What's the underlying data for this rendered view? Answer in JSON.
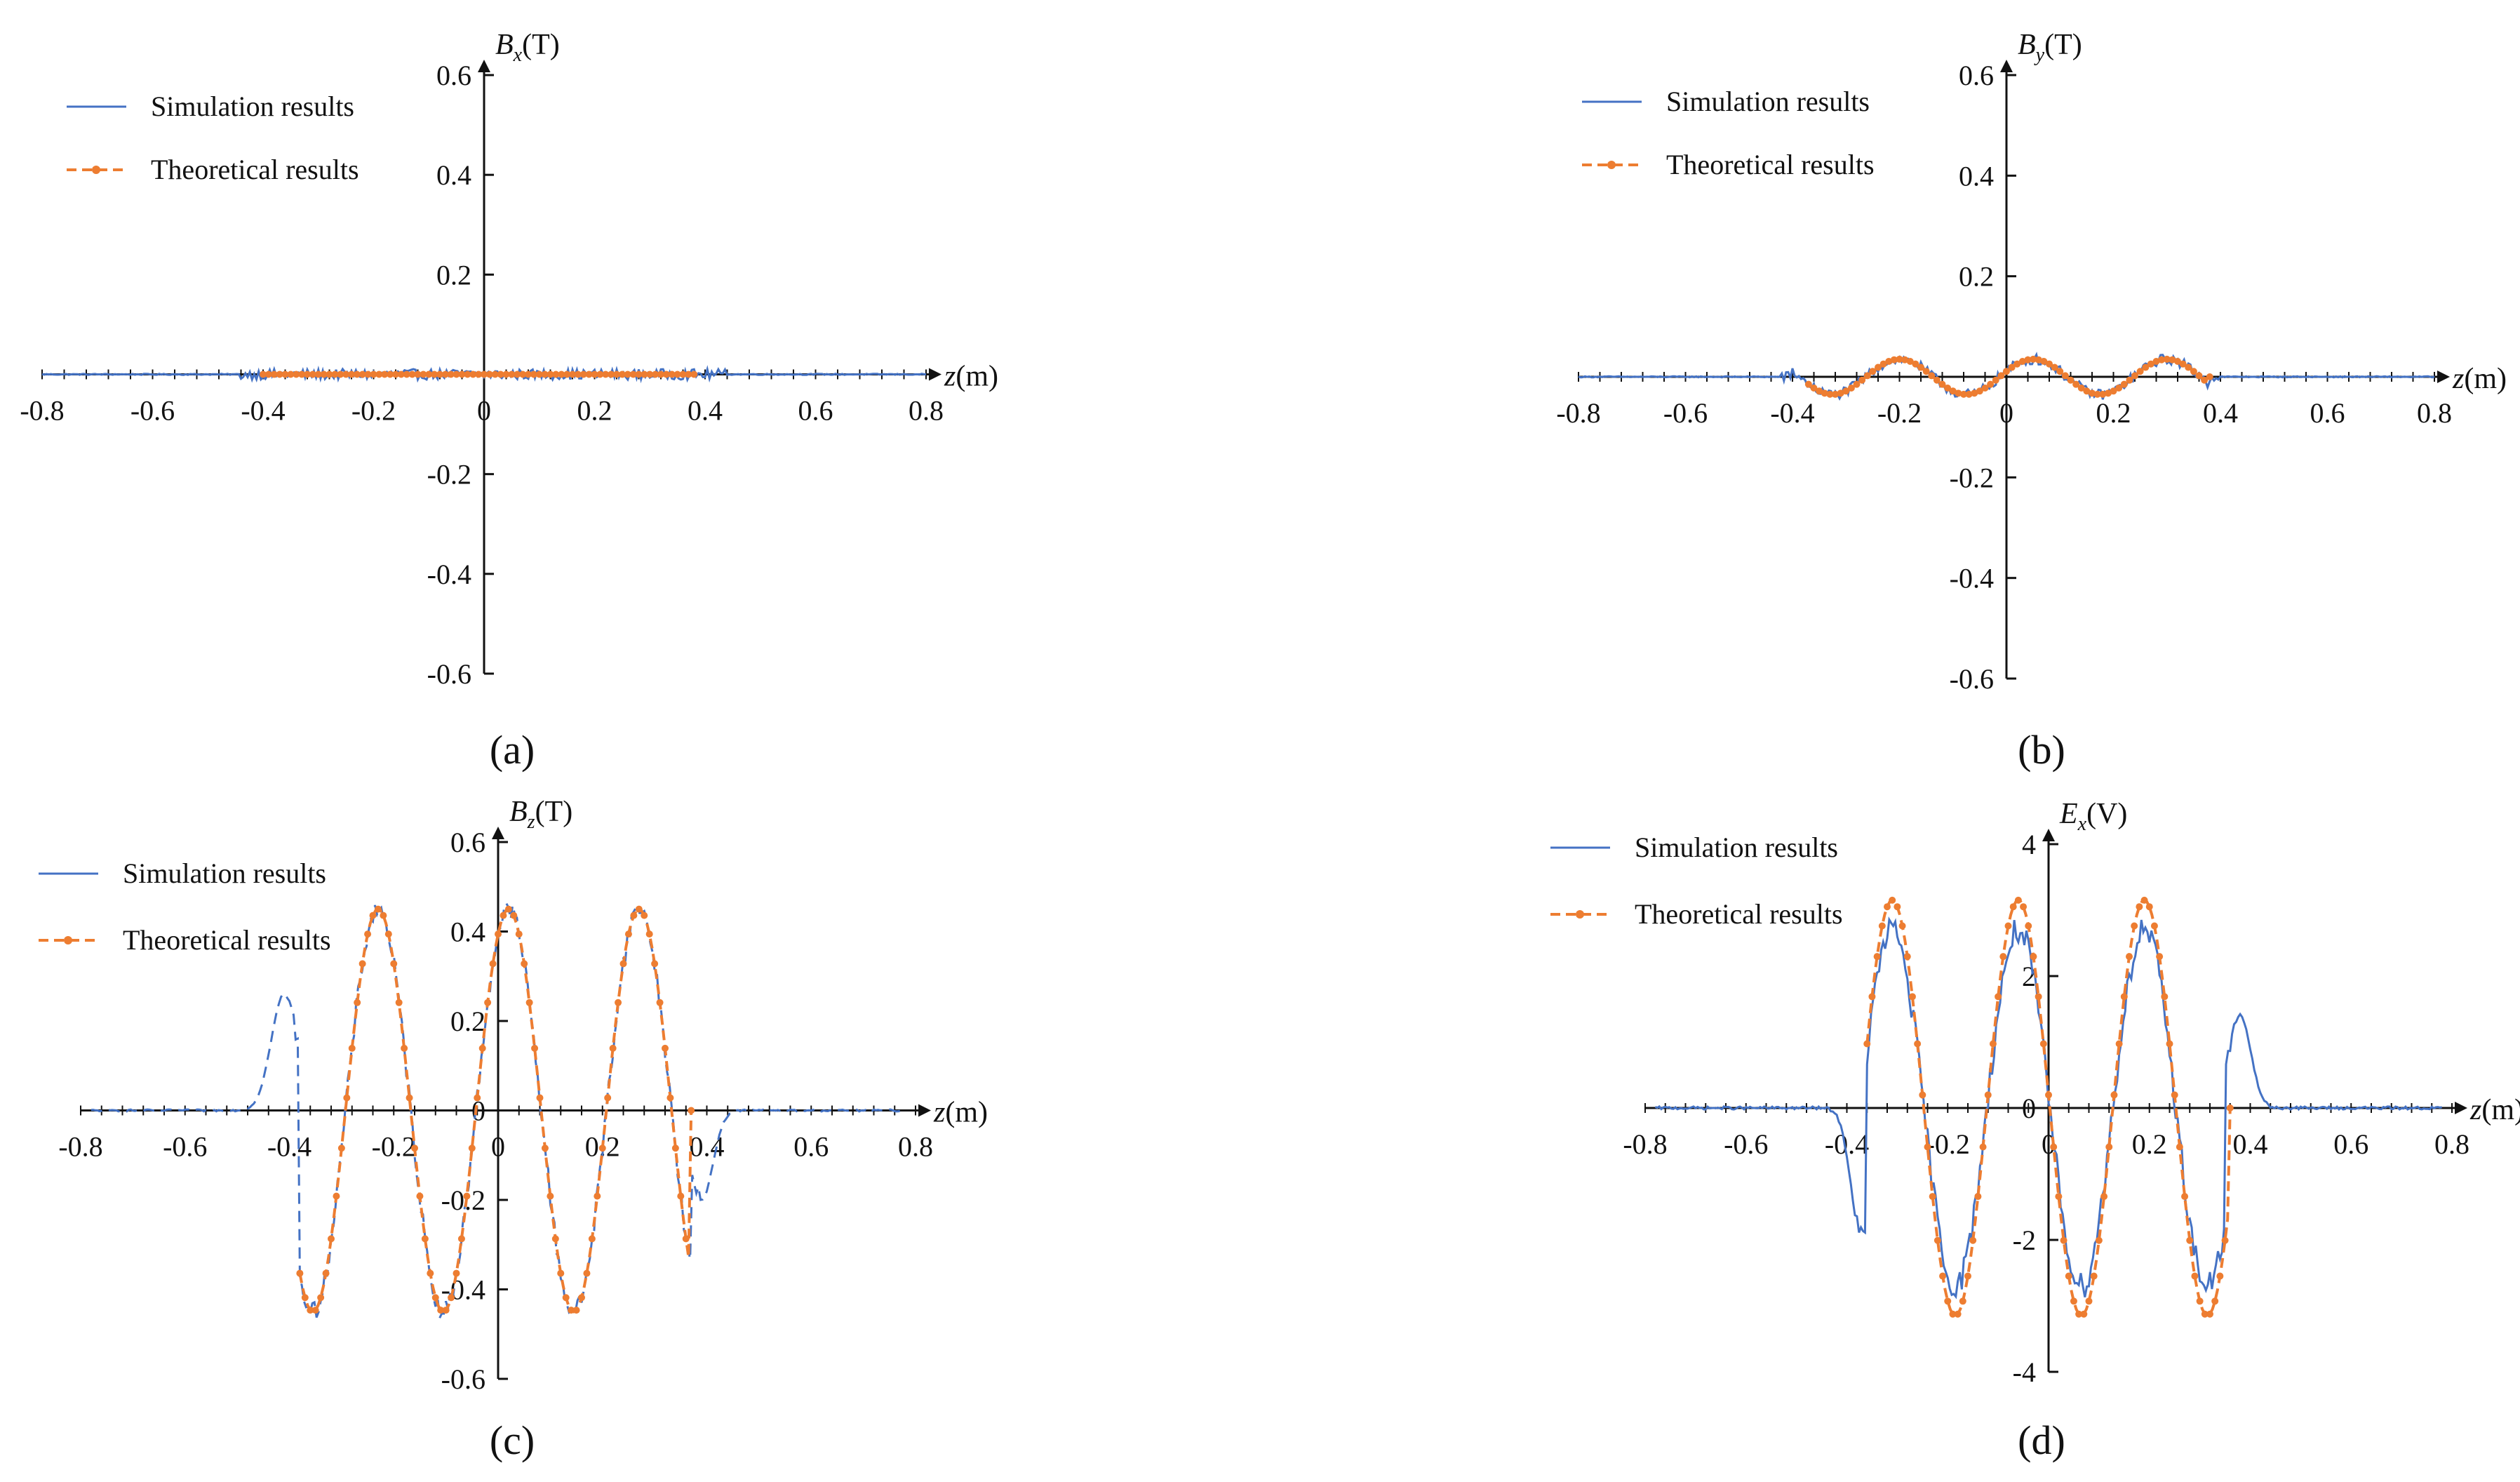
{
  "colors": {
    "simulation": "#4472C4",
    "theoretical": "#ED7D31",
    "axis": "#111111"
  },
  "chart_data": [
    {
      "id": "a",
      "caption": "(a)",
      "type": "line",
      "title": "",
      "ylabel": "Bx(T)",
      "ylabel_main": "B",
      "ylabel_sub": "x",
      "ylabel_unit": "(T)",
      "xlabel": "z(m)",
      "xlabel_main": "z",
      "xlabel_unit": "(m)",
      "xlim": [
        -0.8,
        0.8
      ],
      "ylim": [
        -0.6,
        0.6
      ],
      "xticks": [
        "-0.8",
        "-0.6",
        "-0.4",
        "-0.2",
        "0",
        "0.2",
        "0.4",
        "0.6",
        "0.8"
      ],
      "yticks": [
        "0.6",
        "0.4",
        "0.2",
        "-0.2",
        "-0.4",
        "-0.6"
      ],
      "legend": [
        "Simulation results",
        "Theoretical results"
      ],
      "legend_position": "top-left",
      "series": [
        {
          "name": "Simulation results",
          "style": "solid",
          "noise": 0.015,
          "model": {
            "kind": "sine",
            "amp": 0,
            "freq": 4,
            "phase": 0,
            "range": [
              -0.42,
              0.42
            ]
          }
        },
        {
          "name": "Theoretical results",
          "style": "dashed-dots",
          "model": {
            "kind": "sine",
            "amp": 0,
            "freq": 4,
            "phase": 0,
            "range": [
              -0.4,
              0.38
            ]
          }
        }
      ]
    },
    {
      "id": "b",
      "caption": "(b)",
      "type": "line",
      "title": "",
      "ylabel": "By(T)",
      "ylabel_main": "B",
      "ylabel_sub": "y",
      "ylabel_unit": "(T)",
      "xlabel": "z(m)",
      "xlabel_main": "z",
      "xlabel_unit": "(m)",
      "xlim": [
        -0.8,
        0.8
      ],
      "ylim": [
        -0.6,
        0.6
      ],
      "xticks": [
        "-0.8",
        "-0.6",
        "-0.4",
        "-0.2",
        "0",
        "0.2",
        "0.4",
        "0.6",
        "0.8"
      ],
      "yticks": [
        "0.6",
        "0.4",
        "0.2",
        "-0.2",
        "-0.4",
        "-0.6"
      ],
      "legend": [
        "Simulation results",
        "Theoretical results"
      ],
      "legend_position": "top-left",
      "series": [
        {
          "name": "Simulation results",
          "style": "solid",
          "noise": 0.015,
          "model": {
            "kind": "sine",
            "amp": 0.035,
            "freq": 4,
            "phase": 0.05,
            "range": [
              -0.4,
              0.38
            ]
          }
        },
        {
          "name": "Theoretical results",
          "style": "dashed-dots",
          "model": {
            "kind": "sine",
            "amp": 0.035,
            "freq": 4,
            "phase": 0.05,
            "range": [
              -0.37,
              0.38
            ]
          }
        }
      ]
    },
    {
      "id": "c",
      "caption": "(c)",
      "type": "line",
      "title": "",
      "ylabel": "Bz(T)",
      "ylabel_main": "B",
      "ylabel_sub": "z",
      "ylabel_unit": "(T)",
      "xlabel": "z(m)",
      "xlabel_main": "z",
      "xlabel_unit": "(m)",
      "xlim": [
        -0.8,
        0.8
      ],
      "ylim": [
        -0.6,
        0.6
      ],
      "xticks": [
        "-0.8",
        "-0.6",
        "-0.4",
        "-0.2",
        "0",
        "0.2",
        "0.4",
        "0.6",
        "0.8"
      ],
      "yticks": [
        "0.6",
        "0.4",
        "0.2",
        "0",
        "-0.2",
        "-0.4",
        "-0.6"
      ],
      "legend": [
        "Simulation results",
        "Theoretical results"
      ],
      "legend_position": "top-left",
      "series": [
        {
          "name": "Simulation results",
          "style": "dashed",
          "noise": 0.03,
          "model": {
            "kind": "sine-with-tails",
            "amp": 0.45,
            "freq": 4,
            "phase": 0.02,
            "range": [
              -0.38,
              0.37
            ],
            "tail_left": {
              "peak": 0.26,
              "at": -0.41,
              "width": 0.035
            },
            "tail_right": {
              "peak": -0.2,
              "at": 0.39,
              "width": 0.03
            }
          }
        },
        {
          "name": "Theoretical results",
          "style": "dashed-dots",
          "model": {
            "kind": "sine",
            "amp": 0.45,
            "freq": 4,
            "phase": 0.02,
            "range": [
              -0.38,
              0.37
            ]
          }
        }
      ]
    },
    {
      "id": "d",
      "caption": "(d)",
      "type": "line",
      "title": "",
      "ylabel": "Ex(V)",
      "ylabel_main": "E",
      "ylabel_sub": "x",
      "ylabel_unit": "(V)",
      "xlabel": "z(m)",
      "xlabel_main": "z",
      "xlabel_unit": "(m)",
      "xlim": [
        -0.8,
        0.8
      ],
      "ylim": [
        -4,
        4
      ],
      "xticks": [
        "-0.8",
        "-0.6",
        "-0.4",
        "-0.2",
        "0",
        "0.2",
        "0.4",
        "0.6",
        "0.8"
      ],
      "yticks": [
        "4",
        "2",
        "0",
        "-2",
        "-4"
      ],
      "legend": [
        "Simulation results",
        "Theoretical results"
      ],
      "legend_position": "top-left",
      "series": [
        {
          "name": "Simulation results",
          "style": "solid",
          "noise": 0.3,
          "model": {
            "kind": "sine-with-tails",
            "amp": 2.7,
            "freq": 4,
            "phase": -0.06,
            "range": [
              -0.36,
              0.35
            ],
            "tail_left": {
              "peak": -2.0,
              "at": -0.37,
              "width": 0.03
            },
            "tail_right": {
              "peak": 1.4,
              "at": 0.38,
              "width": 0.03
            }
          }
        },
        {
          "name": "Theoretical results",
          "style": "dashed-dots",
          "model": {
            "kind": "sine",
            "amp": 3.15,
            "freq": 4,
            "phase": -0.06,
            "range": [
              -0.36,
              0.36
            ]
          }
        }
      ]
    }
  ]
}
